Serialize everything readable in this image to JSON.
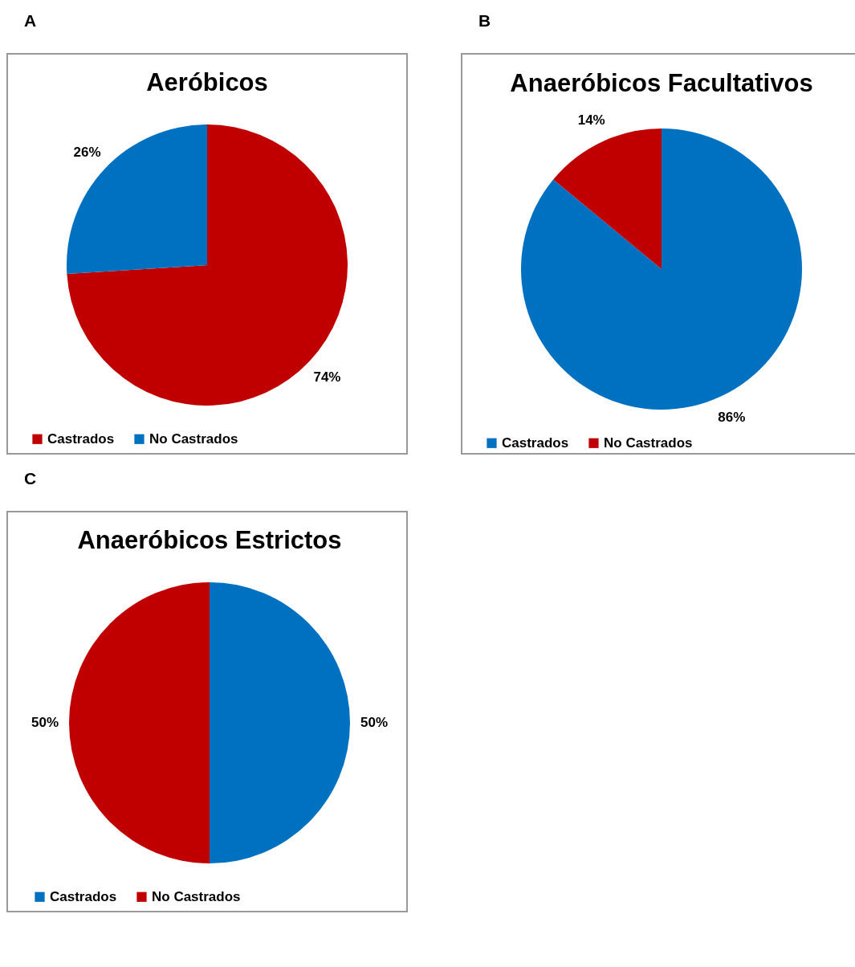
{
  "chart_data": [
    {
      "type": "pie",
      "title": "Aeróbicos",
      "annotations": [
        "A"
      ],
      "categories": [
        "Castrados",
        "No Castrados"
      ],
      "values": [
        74,
        26
      ],
      "colors": [
        "#c00000",
        "#0070c0"
      ],
      "value_labels": [
        "74%",
        "26%"
      ],
      "legend": "bottom"
    },
    {
      "type": "pie",
      "title": "Anaeróbicos Facultativos",
      "annotations": [
        "B"
      ],
      "categories": [
        "Castrados",
        "No Castrados"
      ],
      "values": [
        86,
        14
      ],
      "colors": [
        "#0070c0",
        "#c00000"
      ],
      "value_labels": [
        "86%",
        "14%"
      ],
      "legend": "bottom"
    },
    {
      "type": "pie",
      "title": "Anaeróbicos Estrictos",
      "annotations": [
        "C"
      ],
      "categories": [
        "Castrados",
        "No Castrados"
      ],
      "values": [
        50,
        50
      ],
      "colors": [
        "#0070c0",
        "#c00000"
      ],
      "value_labels": [
        "50%",
        "50%"
      ],
      "legend": "bottom"
    }
  ]
}
